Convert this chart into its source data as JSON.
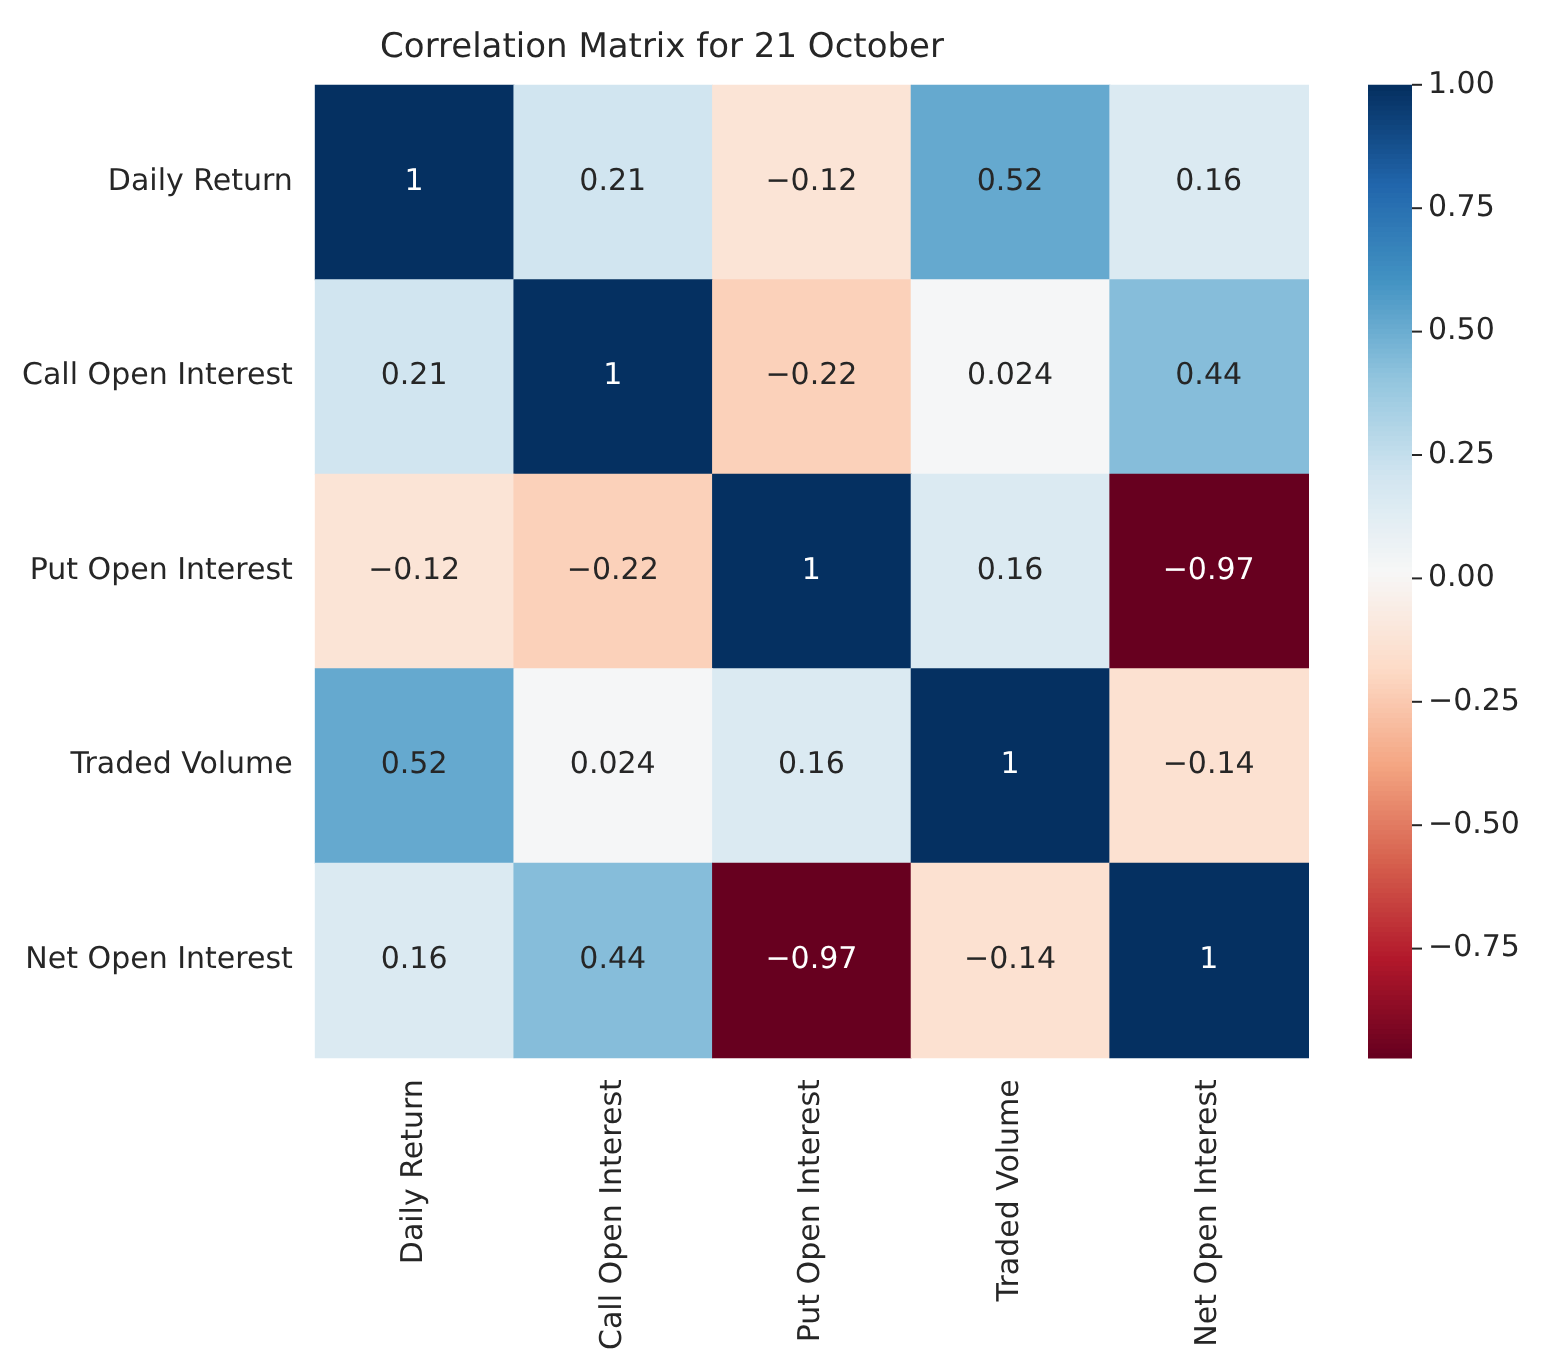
{
  "chart_data": {
    "type": "heatmap",
    "title": "Correlation Matrix for 21 October",
    "categories": [
      "Daily Return",
      "Call Open Interest",
      "Put Open Interest",
      "Traded Volume",
      "Net Open Interest"
    ],
    "y_categories": [
      "Daily Return",
      "Call Open Interest",
      "Put Open Interest",
      "Traded Volume",
      "Net Open Interest"
    ],
    "cells": [
      [
        1,
        0.21,
        -0.12,
        0.52,
        0.16
      ],
      [
        0.21,
        1,
        -0.22,
        0.024,
        0.44
      ],
      [
        -0.12,
        -0.22,
        1,
        0.16,
        -0.97
      ],
      [
        0.52,
        0.024,
        0.16,
        1,
        -0.14
      ],
      [
        0.16,
        0.44,
        -0.97,
        -0.14,
        1
      ]
    ],
    "data_labels": true,
    "clim": [
      -0.97,
      1
    ],
    "cticks": [
      {
        "value": -0.75,
        "label": "−0.75"
      },
      {
        "value": -0.5,
        "label": "−0.50"
      },
      {
        "value": -0.25,
        "label": "−0.25"
      },
      {
        "value": 0,
        "label": "0.00"
      },
      {
        "value": 0.25,
        "label": "0.25"
      },
      {
        "value": 0.5,
        "label": "0.50"
      },
      {
        "value": 0.75,
        "label": "0.75"
      },
      {
        "value": 1,
        "label": "1.00"
      }
    ]
  }
}
